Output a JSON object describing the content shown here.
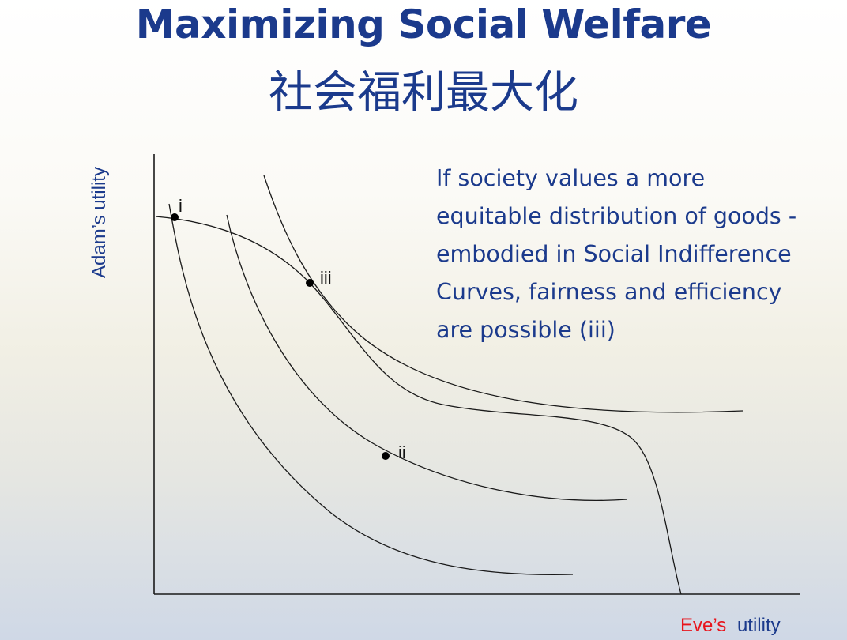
{
  "title": "Maximizing Social Welfare",
  "subtitle": "社会福利最大化",
  "axes": {
    "y_label": "Adam’s utility",
    "x_label_eve": "Eve’s",
    "x_label_utility": "utility"
  },
  "points": [
    {
      "label": "i"
    },
    {
      "label": "ii"
    },
    {
      "label": "iii"
    }
  ],
  "note_lines": [
    "If society values a more",
    "equitable distribution of goods -",
    "embodied in Social Indifference",
    "Curves, fairness and efficiency",
    "are possible (iii)"
  ],
  "colors": {
    "title": "#1b3a8c",
    "y_label": "#1b3a8c",
    "x_label_eve": "#e8141c",
    "x_label_utility": "#1b3a8c",
    "note": "#1b3a8c"
  }
}
